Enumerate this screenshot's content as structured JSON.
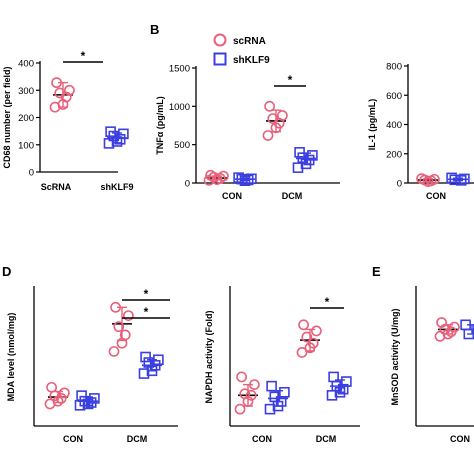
{
  "colors": {
    "scrna": "#e8607a",
    "shklf9": "#3b3fe0",
    "axis": "#000000"
  },
  "legend": [
    {
      "name": "scRNA",
      "marker": "circle",
      "color": "#e8607a"
    },
    {
      "name": "shKLF9",
      "marker": "square",
      "color": "#3b3fe0"
    }
  ],
  "chart_data": [
    {
      "type": "scatter",
      "panel": "",
      "ylabel": "CD68 number (per field)",
      "ylim": [
        0,
        400
      ],
      "yticks": [
        0,
        100,
        200,
        300,
        400
      ],
      "categories": [
        "ScRNA",
        "shKLF9"
      ],
      "series": [
        {
          "name": "ScRNA",
          "category": "ScRNA",
          "values": [
            328,
            300,
            290,
            275,
            248,
            238
          ],
          "mean": 283,
          "err": 45
        },
        {
          "name": "shKLF9",
          "category": "shKLF9",
          "values": [
            148,
            140,
            132,
            120,
            112,
            105
          ],
          "mean": 125,
          "err": 18
        }
      ],
      "significance": [
        {
          "from": 0,
          "to": 1,
          "label": "*",
          "y": 360
        }
      ]
    },
    {
      "type": "scatter",
      "panel": "B",
      "ylabel": "TNFα (pg/mL)",
      "ylim": [
        0,
        1500
      ],
      "yticks": [
        0,
        500,
        1000,
        1500
      ],
      "categories": [
        "CON",
        "DCM"
      ],
      "series": [
        {
          "name": "scRNA",
          "category": "CON",
          "values": [
            100,
            90,
            75,
            60,
            45,
            35
          ],
          "mean": 65,
          "err": 25
        },
        {
          "name": "shKLF9",
          "category": "CON",
          "values": [
            70,
            55,
            50,
            40,
            30
          ],
          "mean": 50,
          "err": 15
        },
        {
          "name": "scRNA",
          "category": "DCM",
          "values": [
            1000,
            880,
            840,
            780,
            720,
            620
          ],
          "mean": 810,
          "err": 140
        },
        {
          "name": "shKLF9",
          "category": "DCM",
          "values": [
            400,
            360,
            330,
            300,
            250,
            200
          ],
          "mean": 320,
          "err": 70
        }
      ],
      "significance": [
        {
          "category": "DCM",
          "label": "*",
          "y": 1270
        }
      ]
    },
    {
      "type": "scatter",
      "panel": "",
      "ylabel": "IL-1 (pg/mL)",
      "ylim": [
        0,
        800
      ],
      "yticks": [
        0,
        200,
        400,
        600,
        800
      ],
      "categories": [
        "CON"
      ],
      "series": [
        {
          "name": "scRNA",
          "category": "CON",
          "values": [
            30,
            25,
            20,
            15,
            10
          ],
          "mean": 20,
          "err": 8
        },
        {
          "name": "shKLF9",
          "category": "CON",
          "values": [
            35,
            28,
            22,
            18
          ],
          "mean": 25,
          "err": 8
        }
      ],
      "significance": []
    },
    {
      "type": "scatter",
      "panel": "D",
      "ylabel": "MDA level  (nmol/mg)",
      "yticks": [],
      "categories": [
        "CON",
        "DCM"
      ],
      "ylim": [
        0,
        5
      ],
      "series": [
        {
          "name": "scRNA",
          "category": "CON",
          "values": [
            1.4,
            1.2,
            1.1,
            1.0,
            0.9,
            0.8
          ],
          "mean": 1.05,
          "err": 0.2
        },
        {
          "name": "shKLF9",
          "category": "CON",
          "values": [
            1.1,
            1.0,
            0.9,
            0.85,
            0.8,
            0.75
          ],
          "mean": 0.9,
          "err": 0.15
        },
        {
          "name": "scRNA",
          "category": "DCM",
          "values": [
            4.3,
            4.0,
            3.6,
            3.3,
            3.0,
            2.7
          ],
          "mean": 3.7,
          "err": 0.6
        },
        {
          "name": "shKLF9",
          "category": "DCM",
          "values": [
            2.5,
            2.4,
            2.3,
            2.2,
            2.0,
            1.9
          ],
          "mean": 2.2,
          "err": 0.2
        }
      ],
      "significance": [
        {
          "label": "*",
          "y": 4.75,
          "from": "scRNA-DCM",
          "to": "shKLF9-DCM"
        },
        {
          "label": "*",
          "y": 4.05,
          "from": "scRNA-DCM",
          "to": "shKLF9-DCM"
        }
      ]
    },
    {
      "type": "scatter",
      "panel": "",
      "ylabel": "NAPDH activity (Fold)",
      "yticks": [],
      "categories": [
        "CON",
        "DCM"
      ],
      "ylim": [
        0,
        4.5
      ],
      "series": [
        {
          "name": "scRNA",
          "category": "CON",
          "values": [
            1.6,
            1.35,
            1.05,
            1.0,
            0.8,
            0.55
          ],
          "mean": 1.0,
          "err": 0.35
        },
        {
          "name": "shKLF9",
          "category": "CON",
          "values": [
            1.3,
            1.1,
            0.95,
            0.8,
            0.65,
            0.55
          ],
          "mean": 0.9,
          "err": 0.25
        },
        {
          "name": "scRNA",
          "category": "DCM",
          "values": [
            3.3,
            3.1,
            2.9,
            2.7,
            2.55,
            2.4
          ],
          "mean": 2.8,
          "err": 0.35
        },
        {
          "name": "shKLF9",
          "category": "DCM",
          "values": [
            1.6,
            1.45,
            1.3,
            1.2,
            1.1,
            1.0
          ],
          "mean": 1.3,
          "err": 0.2
        }
      ],
      "significance": [
        {
          "label": "*",
          "y": 3.75,
          "from": "scRNA-DCM",
          "to": "shKLF9-DCM"
        }
      ]
    },
    {
      "type": "scatter",
      "panel": "E",
      "ylabel": "MnSOD activity (U/mg)",
      "yticks": [],
      "categories": [
        "CON"
      ],
      "ylim": [
        0,
        3
      ],
      "series": [
        {
          "name": "scRNA",
          "category": "CON",
          "values": [
            2.25,
            2.15,
            2.1,
            2.05,
            2.0,
            1.95
          ],
          "mean": 2.1,
          "err": 0.1
        },
        {
          "name": "shKLF9",
          "category": "CON",
          "values": [
            2.2,
            2.1,
            2.0
          ],
          "mean": 2.1,
          "err": 0.1
        }
      ],
      "significance": []
    }
  ]
}
